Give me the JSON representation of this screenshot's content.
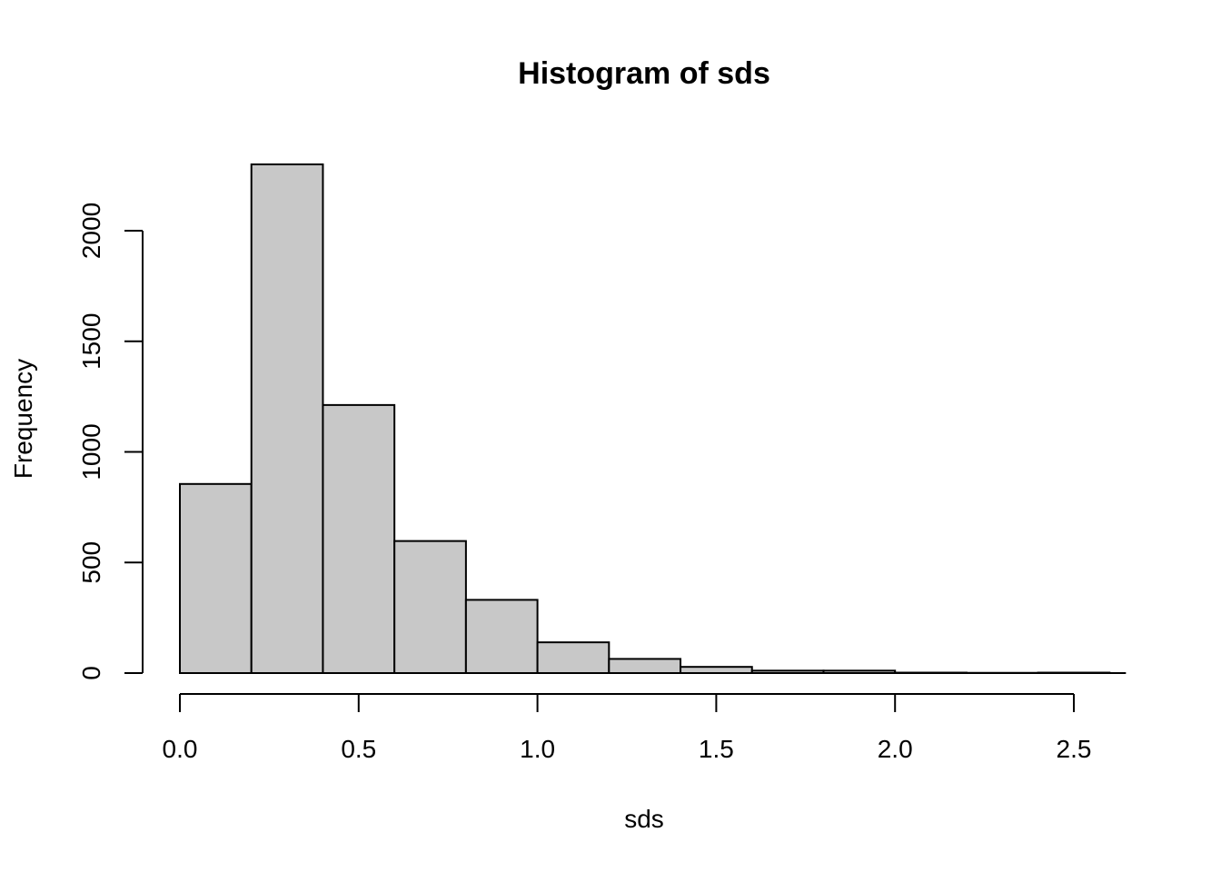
{
  "chart_data": {
    "type": "bar",
    "title": "Histogram of sds",
    "xlabel": "sds",
    "ylabel": "Frequency",
    "bins": [
      {
        "start": 0.0,
        "end": 0.2,
        "count": 855
      },
      {
        "start": 0.2,
        "end": 0.4,
        "count": 2300
      },
      {
        "start": 0.4,
        "end": 0.6,
        "count": 1212
      },
      {
        "start": 0.6,
        "end": 0.8,
        "count": 597
      },
      {
        "start": 0.8,
        "end": 1.0,
        "count": 331
      },
      {
        "start": 1.0,
        "end": 1.2,
        "count": 139
      },
      {
        "start": 1.2,
        "end": 1.4,
        "count": 64
      },
      {
        "start": 1.4,
        "end": 1.6,
        "count": 28
      },
      {
        "start": 1.6,
        "end": 1.8,
        "count": 11
      },
      {
        "start": 1.8,
        "end": 2.0,
        "count": 11
      },
      {
        "start": 2.0,
        "end": 2.2,
        "count": 2
      },
      {
        "start": 2.2,
        "end": 2.4,
        "count": 1
      },
      {
        "start": 2.4,
        "end": 2.6,
        "count": 2
      }
    ],
    "xticks": [
      0.0,
      0.5,
      1.0,
      1.5,
      2.0,
      2.5
    ],
    "xtick_labels": [
      "0.0",
      "0.5",
      "1.0",
      "1.5",
      "2.0",
      "2.5"
    ],
    "yticks": [
      0,
      500,
      1000,
      1500,
      2000
    ],
    "ytick_labels": [
      "0",
      "500",
      "1000",
      "1500",
      "2000"
    ],
    "xlim": [
      0.0,
      2.6
    ],
    "ylim": [
      0,
      2300
    ],
    "grid": false,
    "bar_color": "#c8c8c8",
    "edge_color": "#000000"
  }
}
